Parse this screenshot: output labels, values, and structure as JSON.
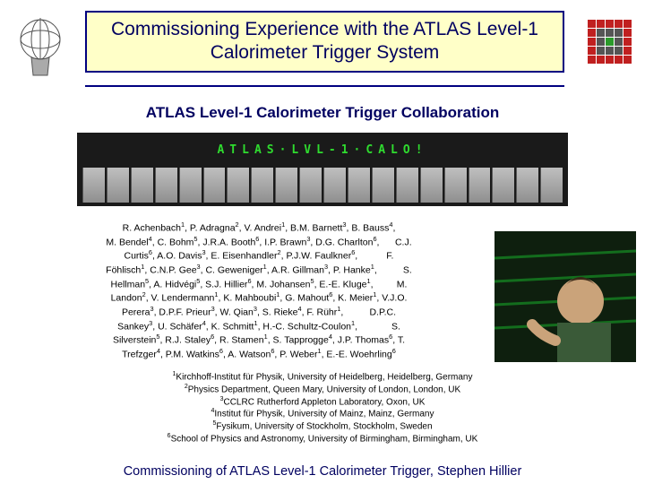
{
  "title": "Commissioning Experience with the ATLAS Level-1 Calorimeter Trigger System",
  "collab": "ATLAS Level-1 Calorimeter Trigger Collaboration",
  "led_text_top": "ATLAS·LVL-1·CALO!",
  "footer": "Commissioning of ATLAS Level-1 Calorimeter Trigger,   Stephen Hillier",
  "authors_html": "R. Achenbach<sup>1</sup>, P. Adragna<sup>2</sup>, V. Andrei<sup>1</sup>, B.M. Barnett<sup>3</sup>, B. Bauss<sup>4</sup>,<br>M. Bendel<sup>4</sup>, C. Bohm<sup>5</sup>, J.R.A. Booth<sup>6</sup>, I.P. Brawn<sup>3</sup>, D.G. Charlton<sup>6</sup>, &nbsp;&nbsp;&nbsp;&nbsp; C.J.<br>Curtis<sup>6</sup>, A.O. Davis<sup>3</sup>, E. Eisenhandler<sup>2</sup>, P.J.W. Faulkner<sup>6</sup>, &nbsp;&nbsp;&nbsp;&nbsp;&nbsp;&nbsp;&nbsp;&nbsp;&nbsp; F.<br>Föhlisch<sup>1</sup>, C.N.P. Gee<sup>3</sup>, C. Geweniger<sup>1</sup>, A.R. Gillman<sup>3</sup>, P. Hanke<sup>1</sup>, &nbsp;&nbsp;&nbsp;&nbsp;&nbsp;&nbsp;&nbsp;&nbsp; S.<br>Hellman<sup>5</sup>, A. Hidvégi<sup>5</sup>, S.J. Hillier<sup>6</sup>, M. Johansen<sup>5</sup>, E.-E. Kluge<sup>1</sup>, &nbsp;&nbsp;&nbsp;&nbsp;&nbsp;&nbsp;&nbsp; M.<br>Landon<sup>2</sup>, V. Lendermann<sup>1</sup>, K. Mahboubi<sup>1</sup>, G. Mahout<sup>6</sup>, K. Meier<sup>1</sup>, V.J.O.<br>Perera<sup>3</sup>, D.P.F. Prieur<sup>3</sup>, W. Qian<sup>3</sup>, S. Rieke<sup>4</sup>, F. Rühr<sup>1</sup>, &nbsp;&nbsp;&nbsp;&nbsp;&nbsp;&nbsp;&nbsp;&nbsp; D.P.C.<br>Sankey<sup>3</sup>, U. Schäfer<sup>4</sup>, K. Schmitt<sup>1</sup>, H.-C. Schultz-Coulon<sup>1</sup>, &nbsp;&nbsp;&nbsp;&nbsp;&nbsp;&nbsp;&nbsp;&nbsp;&nbsp;&nbsp;&nbsp; S.<br>Silverstein<sup>5</sup>, R.J. Staley<sup>6</sup>, R. Stamen<sup>1</sup>, S. Tapprogge<sup>4</sup>, J.P. Thomas<sup>6</sup>, T.<br>Trefzger<sup>4</sup>, P.M. Watkins<sup>6</sup>, A. Watson<sup>6</sup>, P. Weber<sup>1</sup>, E.-E. Woehrling<sup>6</sup>",
  "affiliations_html": "<sup>1</sup>Kirchhoff-Institut für Physik, University of Heidelberg, Heidelberg, Germany<br><sup>2</sup>Physics Department, Queen Mary, University of London, London, UK<br><sup>3</sup>CCLRC Rutherford Appleton Laboratory, Oxon, UK<br><sup>4</sup>Institut für Physik, University of Mainz, Mainz, Germany<br><sup>5</sup>Fysikum, University of Stockholm, Stockholm, Sweden<br><sup>6</sup>School of Physics and Astronomy, University of Birmingham, Birmingham, UK",
  "colors": {
    "title_bg": "#ffffc8",
    "title_border": "#000080",
    "text_head": "#000060",
    "led_green": "#2fdc2f",
    "rack_bg": "#1a1a1a"
  }
}
